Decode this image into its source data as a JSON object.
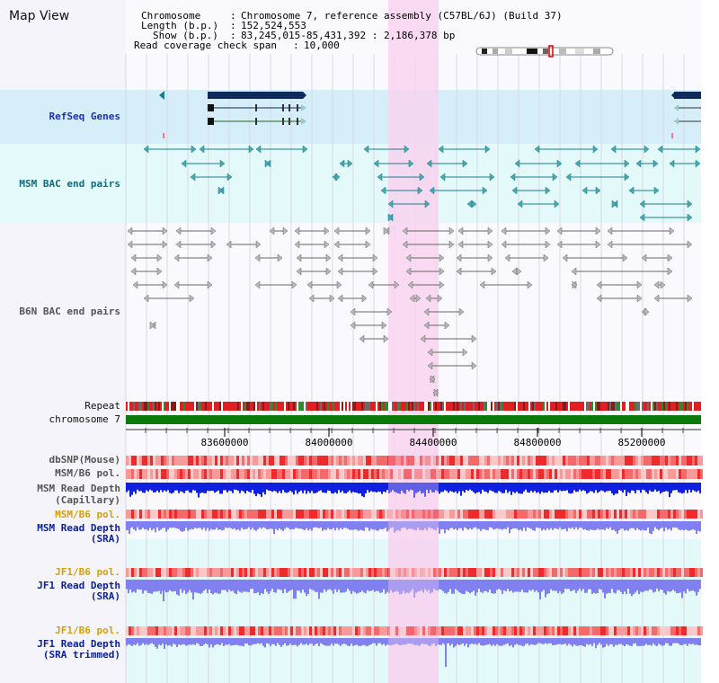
{
  "title": "Map View",
  "info": {
    "chromosome_label": "Chromosome",
    "chromosome_value": "Chromosome 7, reference assembly (C57BL/6J) (Build 37)",
    "length_label": "Length (b.p.)",
    "length_value": "152,524,553",
    "show_label": "Show (b.p.)",
    "show_value": "83,245,015-85,431,392 : 2,186,378 bp",
    "coverage_label": "Read coverage check span",
    "coverage_value": "10,000"
  },
  "tracks": {
    "refseq": "RefSeq Genes",
    "msm_bac": "MSM BAC end pairs",
    "b6n_bac": "B6N BAC end pairs",
    "repeat": "Repeat",
    "chromosome": "chromosome 7",
    "dbsnp": "dbSNP(Mouse)",
    "msm_b6_pol": "MSM/B6 pol.",
    "msm_depth_cap_1": "MSM Read Depth",
    "msm_depth_cap_2": "(Capillary)",
    "msm_b6_pol2": "MSM/B6 pol.",
    "msm_depth_sra_1": "MSM Read Depth",
    "msm_depth_sra_2": "(SRA)",
    "jf1_b6_pol": "JF1/B6 pol.",
    "jf1_depth_sra_1": "JF1 Read Depth",
    "jf1_depth_sra_2": "(SRA)",
    "jf1_b6_pol2": "JF1/B6 pol.",
    "jf1_depth_trim_1": "JF1 Read Depth",
    "jf1_depth_trim_2": "(SRA trimmed)"
  },
  "axis": {
    "ticks": [
      "83600000",
      "84000000",
      "84400000",
      "84800000",
      "85200000"
    ]
  },
  "colors": {
    "highlight": "#f8d3f0",
    "refseq_bg": "#d6eefa",
    "teal_bg": "#e4f9f9",
    "gene": "#0c2a5c",
    "teal": "#1a7f86",
    "gray": "#666666",
    "chromosome": "#0a7a0a",
    "depth_dark": "#1020e0",
    "depth_light": "#8080f0"
  }
}
